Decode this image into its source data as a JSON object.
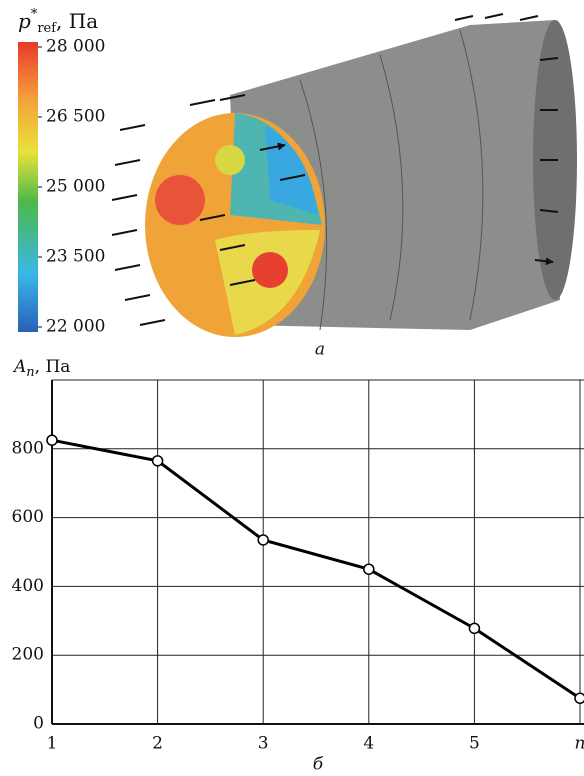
{
  "figure_a": {
    "colorbar": {
      "label_symbol": "p",
      "label_sup": "*",
      "label_sub": "ref",
      "label_unit": ", Па",
      "lim": [
        22000,
        28000
      ],
      "ticks": [
        {
          "value": 28000,
          "label": "28 000"
        },
        {
          "value": 26500,
          "label": "26 500"
        },
        {
          "value": 25000,
          "label": "25 000"
        },
        {
          "value": 23500,
          "label": "23 500"
        },
        {
          "value": 22000,
          "label": "22 000"
        }
      ]
    },
    "caption": "а"
  },
  "chart_data": {
    "type": "line",
    "ylabel_symbol": "A",
    "ylabel_sub": "n",
    "ylabel_unit": ", Па",
    "caption": "б",
    "x": [
      1,
      2,
      3,
      4,
      5,
      6
    ],
    "values": [
      825,
      765,
      535,
      450,
      278,
      75
    ],
    "color": "#000000",
    "xlim": [
      1,
      6
    ],
    "xticks": [
      1,
      2,
      3,
      4,
      5,
      {
        "value": 6,
        "label": "n"
      }
    ],
    "ylim": [
      0,
      1000
    ],
    "yticks": [
      0,
      200,
      400,
      600,
      800
    ],
    "grid": true
  }
}
